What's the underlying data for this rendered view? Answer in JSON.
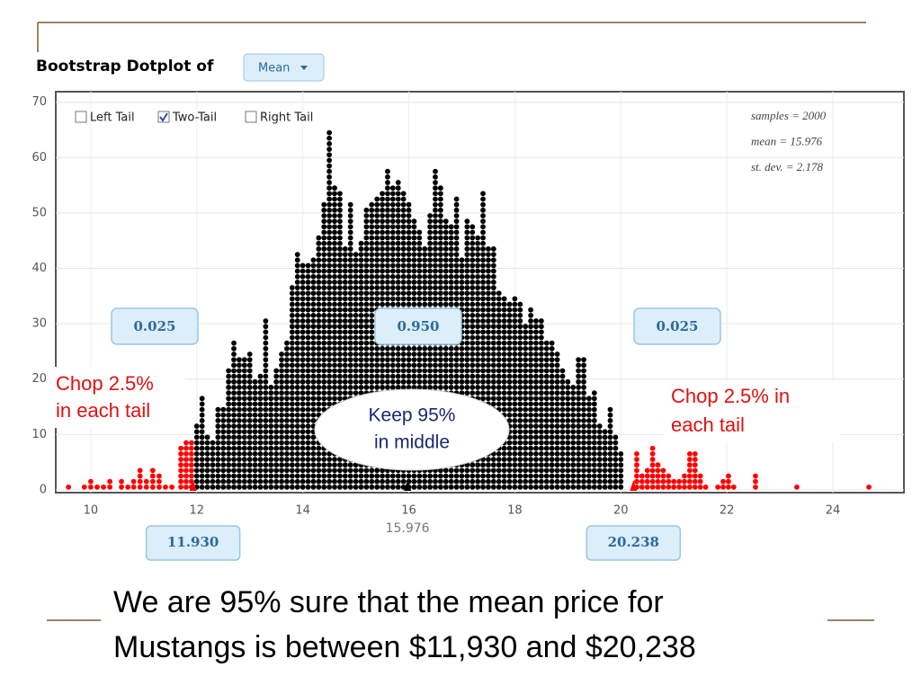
{
  "title": "Bootstrap Dotplot of",
  "statistic": "Mean",
  "options": [
    {
      "label": "Left Tail",
      "checked": false
    },
    {
      "label": "Two-Tail",
      "checked": true
    },
    {
      "label": "Right Tail",
      "checked": false
    }
  ],
  "chart_data": {
    "type": "dotplot",
    "stats": [
      "samples = 2000",
      "mean = 15.976",
      "st. dev. = 2.178"
    ],
    "xlim": [
      9.34,
      25.34
    ],
    "ylim": [
      -0.5,
      71.9
    ],
    "xticks": [
      10,
      12,
      14,
      16,
      18,
      20,
      22,
      24
    ],
    "yticks": [
      0,
      10,
      20,
      30,
      40,
      50,
      60,
      70
    ],
    "grid": true,
    "groups": [
      {
        "color": "#ff0000",
        "x": [
          9.58,
          9.88,
          10.0,
          10.12,
          10.24,
          10.36,
          10.58,
          10.7,
          10.81,
          10.93,
          11.05,
          11.17,
          11.29,
          11.41,
          11.53,
          11.7,
          11.8,
          11.9
        ],
        "values": [
          1,
          1,
          2,
          1,
          1,
          2,
          2,
          1,
          2,
          4,
          2,
          4,
          3,
          1,
          1,
          8,
          9,
          9
        ]
      },
      {
        "color": "#000000",
        "x": [
          12.0,
          12.1,
          12.2,
          12.3,
          12.4,
          12.5,
          12.6,
          12.7,
          12.8,
          12.9,
          13.0,
          13.1,
          13.2,
          13.3,
          13.4,
          13.5,
          13.6,
          13.7,
          13.8,
          13.9,
          14.0,
          14.1,
          14.2,
          14.3,
          14.4,
          14.5,
          14.6,
          14.7,
          14.8,
          14.9,
          15.0,
          15.1,
          15.2,
          15.3,
          15.4,
          15.5,
          15.6,
          15.7,
          15.8,
          15.9,
          16.0,
          16.1,
          16.2,
          16.3,
          16.4,
          16.5,
          16.6,
          16.7,
          16.8,
          16.9,
          17.0,
          17.1,
          17.2,
          17.3,
          17.4,
          17.5,
          17.6,
          17.7,
          17.8,
          17.9,
          18.0,
          18.1,
          18.2,
          18.3,
          18.4,
          18.5,
          18.6,
          18.7,
          18.8,
          18.9,
          19.0,
          19.1,
          19.2,
          19.3,
          19.4,
          19.5,
          19.6,
          19.7,
          19.8,
          19.9,
          20.0
        ],
        "values": [
          12,
          17,
          10,
          9,
          15,
          15,
          22,
          27,
          24,
          24,
          25,
          20,
          21,
          31,
          19,
          22,
          25,
          27,
          37,
          43,
          41,
          41,
          42,
          46,
          52,
          65,
          55,
          54,
          44,
          52,
          43,
          45,
          51,
          52,
          53,
          54,
          58,
          55,
          56,
          54,
          52,
          49,
          47,
          44,
          50,
          58,
          55,
          49,
          48,
          53,
          42,
          49,
          48,
          46,
          54,
          44,
          44,
          36,
          35,
          34,
          35,
          34,
          30,
          33,
          31,
          31,
          27,
          27,
          25,
          22,
          20,
          19,
          24,
          24,
          17,
          18,
          12,
          11,
          15,
          10,
          7
        ]
      },
      {
        "color": "#ff0000",
        "x": [
          20.3,
          20.4,
          20.5,
          20.6,
          20.7,
          20.8,
          20.9,
          21.0,
          21.1,
          21.2,
          21.3,
          21.4,
          21.5,
          21.6,
          21.83,
          21.93,
          22.03,
          22.13,
          22.54,
          23.32,
          24.68
        ],
        "values": [
          7,
          3,
          4,
          8,
          5,
          4,
          3,
          2,
          2,
          3,
          7,
          7,
          3,
          1,
          1,
          2,
          3,
          1,
          3,
          1,
          1
        ]
      }
    ],
    "proportions": [
      0.025,
      {
        "value": 0.95,
        "label": "0.950"
      },
      0.025
    ],
    "cutoffs": [
      {
        "value": 11.93,
        "label": "11.930"
      },
      20.238
    ],
    "mean_marker": 15.976,
    "annotations": [
      "Chop 2.5%",
      "in each tail",
      "Keep 95%",
      "in middle",
      "Chop 2.5% in",
      "each tail"
    ]
  },
  "conclusion": [
    "We are 95% sure that the mean price for",
    "Mustangs is between $11,930 and $20,238"
  ]
}
